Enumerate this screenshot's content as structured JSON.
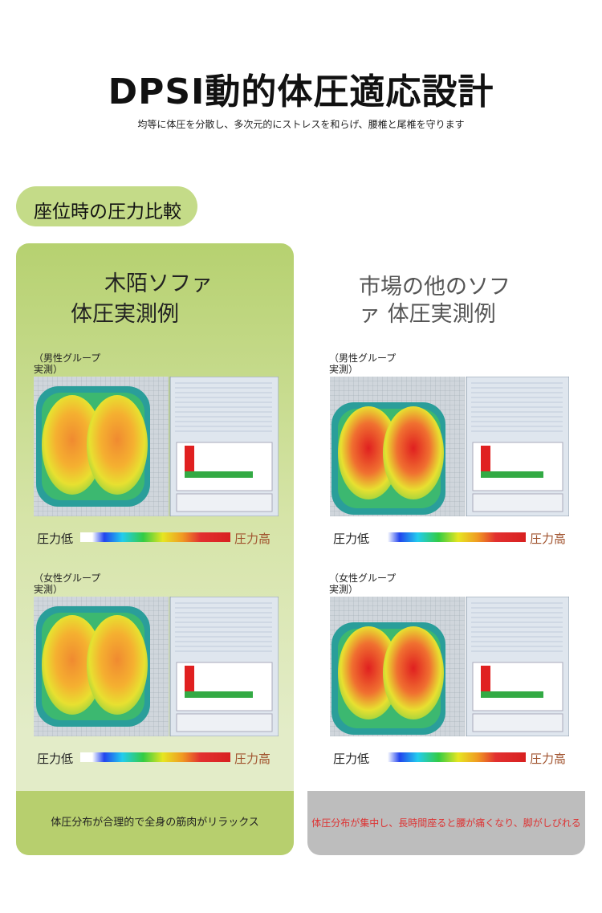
{
  "header": {
    "title": "DPSI動的体圧適応設計",
    "subtitle": "均等に体圧を分散し、多次元的にストレスを和らげ、腰椎と尾椎を守ります"
  },
  "section": {
    "label": "座位時の圧力比較"
  },
  "panels": [
    {
      "title_lines": [
        "木陌ソファ",
        "体圧実測例"
      ],
      "groups": [
        "（男性グループ実測）",
        "（女性グループ実測）"
      ],
      "legend": {
        "low": "圧力低",
        "high": "圧力高"
      },
      "footer": "体圧分布が合理的で全身の筋肉がリラックス"
    },
    {
      "title_lines": [
        "市場の他のソフ",
        "ァ 体圧実測例"
      ],
      "groups": [
        "（男性グループ実測）",
        "（女性グループ実測）"
      ],
      "legend": {
        "low": "圧力低",
        "high": "圧力高"
      },
      "footer": "体圧分布が集中し、長時間座ると腰が痛くなり、脚がしびれる"
    }
  ]
}
